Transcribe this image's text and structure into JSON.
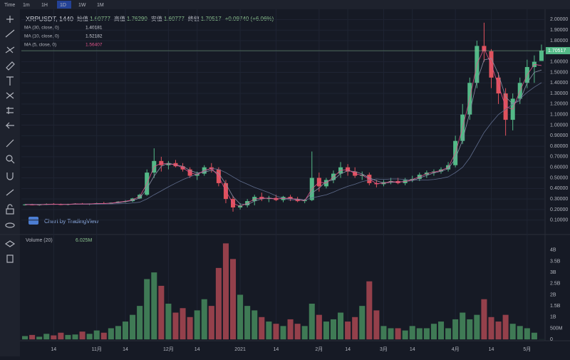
{
  "toolbar": {
    "intervals": [
      "Time",
      "1m",
      "1H",
      "1D",
      "1W",
      "1M"
    ]
  },
  "header": {
    "symbol": "XRPUSDT, 1440",
    "ohlc": [
      {
        "label": "始值",
        "value": "1.60777"
      },
      {
        "label": "高值",
        "value": "1.76290"
      },
      {
        "label": "安值",
        "value": "1.60777"
      },
      {
        "label": "終値",
        "value": "1.70517"
      }
    ],
    "change": "+0.09740 (+6.06%)"
  },
  "watermark": "Chart by TradingView",
  "chart_data": [
    {
      "type": "candlestick",
      "up_color": "#53b987",
      "down_color": "#e0525d",
      "grid": true,
      "categories": [
        null,
        null,
        null,
        null,
        "14",
        null,
        null,
        null,
        null,
        null,
        "11月",
        null,
        null,
        null,
        "14",
        null,
        null,
        null,
        null,
        null,
        "12月",
        null,
        null,
        null,
        "14",
        null,
        null,
        null,
        null,
        null,
        "2021",
        null,
        null,
        null,
        null,
        "14",
        null,
        null,
        null,
        null,
        null,
        "2月",
        null,
        null,
        null,
        "14",
        null,
        null,
        null,
        null,
        "3月",
        null,
        null,
        null,
        "14",
        null,
        null,
        null,
        null,
        null,
        "4月",
        null,
        null,
        null,
        null,
        "14",
        null,
        null,
        null,
        null,
        "5月",
        null,
        null
      ],
      "open": [
        0.245,
        0.248,
        0.242,
        0.247,
        0.253,
        0.25,
        0.246,
        0.252,
        0.256,
        0.25,
        0.255,
        0.26,
        0.255,
        0.265,
        0.275,
        0.28,
        0.305,
        0.34,
        0.55,
        0.66,
        0.62,
        0.64,
        0.61,
        0.58,
        0.52,
        0.54,
        0.6,
        0.58,
        0.45,
        0.3,
        0.22,
        0.24,
        0.28,
        0.32,
        0.3,
        0.31,
        0.29,
        0.32,
        0.3,
        0.28,
        0.29,
        0.5,
        0.42,
        0.48,
        0.54,
        0.6,
        0.56,
        0.52,
        0.53,
        0.45,
        0.44,
        0.46,
        0.47,
        0.45,
        0.48,
        0.49,
        0.53,
        0.55,
        0.56,
        0.58,
        0.62,
        0.85,
        1.1,
        1.4,
        1.75,
        1.7,
        1.45,
        1.3,
        1.05,
        1.25,
        1.4,
        1.55,
        1.60777
      ],
      "high": [
        0.252,
        0.255,
        0.25,
        0.258,
        0.26,
        0.256,
        0.255,
        0.26,
        0.262,
        0.258,
        0.265,
        0.272,
        0.268,
        0.28,
        0.29,
        0.31,
        0.35,
        0.58,
        0.78,
        0.7,
        0.66,
        0.67,
        0.64,
        0.6,
        0.56,
        0.62,
        0.64,
        0.6,
        0.48,
        0.33,
        0.26,
        0.3,
        0.34,
        0.36,
        0.33,
        0.34,
        0.33,
        0.34,
        0.32,
        0.3,
        0.75,
        0.55,
        0.5,
        0.57,
        0.65,
        0.63,
        0.6,
        0.56,
        0.55,
        0.48,
        0.48,
        0.5,
        0.5,
        0.5,
        0.52,
        0.55,
        0.57,
        0.58,
        0.6,
        0.65,
        0.9,
        1.2,
        1.45,
        1.8,
        1.97,
        1.72,
        1.5,
        1.35,
        1.3,
        1.45,
        1.62,
        1.66,
        1.7629
      ],
      "low": [
        0.238,
        0.24,
        0.236,
        0.243,
        0.245,
        0.242,
        0.24,
        0.247,
        0.248,
        0.242,
        0.25,
        0.252,
        0.25,
        0.26,
        0.265,
        0.27,
        0.3,
        0.33,
        0.5,
        0.56,
        0.58,
        0.6,
        0.56,
        0.5,
        0.48,
        0.52,
        0.55,
        0.42,
        0.26,
        0.18,
        0.2,
        0.22,
        0.24,
        0.28,
        0.27,
        0.28,
        0.27,
        0.28,
        0.27,
        0.26,
        0.28,
        0.37,
        0.4,
        0.45,
        0.5,
        0.52,
        0.5,
        0.48,
        0.43,
        0.41,
        0.42,
        0.44,
        0.44,
        0.43,
        0.46,
        0.47,
        0.5,
        0.52,
        0.54,
        0.56,
        0.6,
        0.82,
        1.05,
        1.35,
        1.6,
        1.35,
        1.2,
        0.9,
        0.95,
        1.2,
        1.35,
        1.4,
        1.60777
      ],
      "close": [
        0.248,
        0.242,
        0.247,
        0.253,
        0.25,
        0.246,
        0.252,
        0.256,
        0.25,
        0.255,
        0.26,
        0.255,
        0.265,
        0.275,
        0.28,
        0.305,
        0.34,
        0.55,
        0.66,
        0.62,
        0.64,
        0.61,
        0.58,
        0.52,
        0.54,
        0.6,
        0.58,
        0.45,
        0.3,
        0.22,
        0.24,
        0.28,
        0.32,
        0.3,
        0.31,
        0.29,
        0.32,
        0.3,
        0.28,
        0.29,
        0.5,
        0.42,
        0.48,
        0.54,
        0.6,
        0.56,
        0.52,
        0.53,
        0.45,
        0.44,
        0.46,
        0.47,
        0.45,
        0.48,
        0.49,
        0.53,
        0.55,
        0.56,
        0.58,
        0.62,
        0.85,
        1.1,
        1.4,
        1.75,
        1.7,
        1.45,
        1.3,
        1.05,
        1.25,
        1.4,
        1.55,
        1.6,
        1.70517
      ],
      "series": [
        {
          "name": "MA (30, close, 0)",
          "last_label": "1.40181",
          "color": "#5f6c8c",
          "values": [
            0.25,
            0.25,
            0.249,
            0.249,
            0.249,
            0.249,
            0.249,
            0.25,
            0.25,
            0.25,
            0.251,
            0.252,
            0.253,
            0.255,
            0.257,
            0.262,
            0.27,
            0.3,
            0.34,
            0.377,
            0.415,
            0.45,
            0.483,
            0.51,
            0.537,
            0.565,
            0.59,
            0.58,
            0.55,
            0.51,
            0.47,
            0.44,
            0.41,
            0.385,
            0.36,
            0.33,
            0.305,
            0.29,
            0.29,
            0.29,
            0.31,
            0.325,
            0.34,
            0.365,
            0.395,
            0.42,
            0.44,
            0.465,
            0.48,
            0.49,
            0.485,
            0.49,
            0.49,
            0.485,
            0.48,
            0.48,
            0.48,
            0.485,
            0.495,
            0.51,
            0.55,
            0.6,
            0.69,
            0.81,
            0.93,
            1.02,
            1.1,
            1.15,
            1.2,
            1.25,
            1.31,
            1.36,
            1.40181
          ]
        },
        {
          "name": "MA (10, close, 0)",
          "last_label": "1.52182",
          "color": "#8a90a6",
          "values": [
            0.246,
            0.246,
            0.246,
            0.247,
            0.25,
            0.25,
            0.249,
            0.251,
            0.253,
            0.254,
            0.255,
            0.257,
            0.26,
            0.265,
            0.273,
            0.287,
            0.308,
            0.398,
            0.517,
            0.61,
            0.64,
            0.623,
            0.61,
            0.57,
            0.547,
            0.553,
            0.573,
            0.543,
            0.443,
            0.323,
            0.253,
            0.247,
            0.28,
            0.3,
            0.31,
            0.3,
            0.307,
            0.303,
            0.3,
            0.29,
            0.357,
            0.403,
            0.467,
            0.48,
            0.54,
            0.567,
            0.56,
            0.537,
            0.5,
            0.473,
            0.45,
            0.457,
            0.46,
            0.467,
            0.473,
            0.5,
            0.523,
            0.547,
            0.563,
            0.587,
            0.683,
            0.857,
            1.117,
            1.417,
            1.617,
            1.633,
            1.483,
            1.267,
            1.2,
            1.233,
            1.4,
            1.5,
            1.52182
          ]
        },
        {
          "name": "MA (5, close, 0)",
          "last_label": "1.56407",
          "color": "#e0528a",
          "values": [
            0.247,
            0.245,
            0.245,
            0.25,
            0.252,
            0.248,
            0.249,
            0.254,
            0.253,
            0.253,
            0.258,
            0.258,
            0.26,
            0.27,
            0.278,
            0.293,
            0.323,
            0.445,
            0.605,
            0.64,
            0.63,
            0.625,
            0.595,
            0.55,
            0.53,
            0.57,
            0.59,
            0.515,
            0.375,
            0.26,
            0.23,
            0.26,
            0.3,
            0.31,
            0.305,
            0.3,
            0.305,
            0.31,
            0.29,
            0.285,
            0.395,
            0.46,
            0.45,
            0.51,
            0.57,
            0.58,
            0.54,
            0.525,
            0.49,
            0.445,
            0.45,
            0.465,
            0.46,
            0.465,
            0.485,
            0.51,
            0.54,
            0.555,
            0.57,
            0.6,
            0.735,
            0.975,
            1.25,
            1.575,
            1.725,
            1.575,
            1.375,
            1.175,
            1.15,
            1.325,
            1.475,
            1.575,
            1.56407
          ]
        }
      ],
      "ylim": [
        -0.03,
        2.05
      ],
      "yticks": [
        {
          "value": 0.1,
          "label": "0.10000"
        },
        {
          "value": 0.2,
          "label": "0.20000"
        },
        {
          "value": 0.3,
          "label": "0.30000"
        },
        {
          "value": 0.4,
          "label": "0.40000"
        },
        {
          "value": 0.5,
          "label": "0.50000"
        },
        {
          "value": 0.6,
          "label": "0.60000"
        },
        {
          "value": 0.7,
          "label": "0.70000"
        },
        {
          "value": 0.8,
          "label": "0.80000"
        },
        {
          "value": 0.9,
          "label": "0.90000"
        },
        {
          "value": 1.0,
          "label": "1.00000"
        },
        {
          "value": 1.1,
          "label": "1.10000"
        },
        {
          "value": 1.2,
          "label": "1.20000"
        },
        {
          "value": 1.3,
          "label": "1.30000"
        },
        {
          "value": 1.4,
          "label": "1.40000"
        },
        {
          "value": 1.5,
          "label": "1.50000"
        },
        {
          "value": 1.6,
          "label": "1.60000"
        },
        {
          "value": 1.7,
          "label": "1.70000"
        },
        {
          "value": 1.8,
          "label": "1.80000"
        },
        {
          "value": 1.9,
          "label": "1.90000"
        },
        {
          "value": 2.0,
          "label": "2.00000"
        }
      ]
    },
    {
      "type": "bar",
      "title": "Volume (20)",
      "last_label": "6.025M",
      "up_color": "#3f7a55",
      "down_color": "#94404b",
      "values": [
        150000000.0,
        200000000.0,
        120000000.0,
        250000000.0,
        180000000.0,
        300000000.0,
        200000000.0,
        220000000.0,
        350000000.0,
        250000000.0,
        400000000.0,
        300000000.0,
        500000000.0,
        600000000.0,
        800000000.0,
        1100000000.0,
        1500000000.0,
        2700000000.0,
        3000000000.0,
        2400000000.0,
        1600000000.0,
        1200000000.0,
        1400000000.0,
        1000000000.0,
        1300000000.0,
        1800000000.0,
        1500000000.0,
        3200000000.0,
        4300000000.0,
        3600000000.0,
        2000000000.0,
        1500000000.0,
        1300000000.0,
        1000000000.0,
        800000000.0,
        700000000.0,
        600000000.0,
        900000000.0,
        700000000.0,
        600000000.0,
        1600000000.0,
        1100000000.0,
        800000000.0,
        900000000.0,
        1200000000.0,
        800000000.0,
        1000000000.0,
        1500000000.0,
        2600000000.0,
        1300000000.0,
        600000000.0,
        500000000.0,
        500000000.0,
        400000000.0,
        600000000.0,
        500000000.0,
        500000000.0,
        700000000.0,
        800000000.0,
        500000000.0,
        900000000.0,
        1200000000.0,
        900000000.0,
        1100000000.0,
        1800000000.0,
        1000000000.0,
        800000000.0,
        1100000000.0,
        700000000.0,
        600000000.0,
        500000000.0,
        300000000.0,
        6025000
      ],
      "ylim": [
        -60000000.0,
        4600000000.0
      ],
      "yticks": [
        0,
        {
          "value": 500000000.0,
          "label": "500M"
        },
        {
          "value": 1000000000.0,
          "label": "1B"
        },
        {
          "value": 1500000000.0,
          "label": "1.5B"
        },
        {
          "value": 2000000000.0,
          "label": "2B"
        },
        {
          "value": 2500000000.0,
          "label": "2.5B"
        },
        {
          "value": 3000000000.0,
          "label": "3B"
        },
        {
          "value": 3500000000.0,
          "label": "3.5B"
        },
        {
          "value": 4000000000.0,
          "label": "4B"
        }
      ]
    }
  ]
}
